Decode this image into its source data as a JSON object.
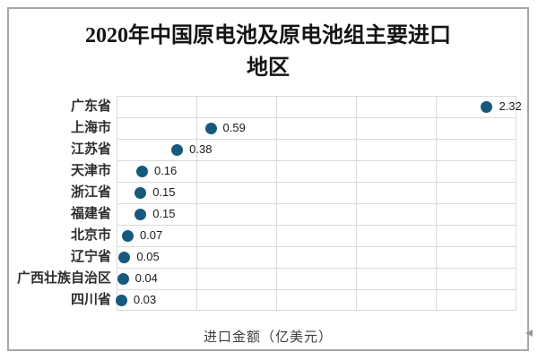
{
  "chart": {
    "title_lines": [
      "2020年中国原电池及原电池组主要进口",
      "地区"
    ]
  },
  "chart_data": {
    "type": "scatter",
    "orientation": "horizontal",
    "title": "2020年中国原电池及原电池组主要进口地区",
    "categories": [
      "广东省",
      "上海市",
      "江苏省",
      "天津市",
      "浙江省",
      "福建省",
      "北京市",
      "辽宁省",
      "广西壮族自治区",
      "四川省"
    ],
    "values": [
      2.32,
      0.59,
      0.38,
      0.16,
      0.15,
      0.15,
      0.07,
      0.05,
      0.04,
      0.03
    ],
    "data_labels": [
      "2.32",
      "0.59",
      "0.38",
      "0.16",
      "0.15",
      "0.15",
      "0.07",
      "0.05",
      "0.04",
      "0.03"
    ],
    "xlabel": "进口金额（亿美元）",
    "ylabel": "",
    "xlim": [
      0,
      2.5
    ],
    "x_gridline_step": 0.5,
    "grid": true,
    "legend": "none",
    "marker_color": "#16597c",
    "gridline_color": "#d9d9d9",
    "frame_border_color": "#a6a6a6"
  }
}
